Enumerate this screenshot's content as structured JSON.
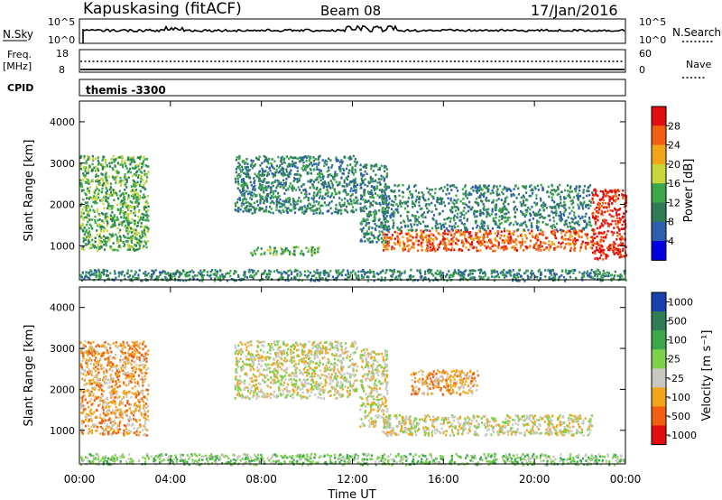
{
  "header": {
    "station": "Kapuskasing (fitACF)",
    "beam": "Beam 08",
    "date": "17/Jan/2016"
  },
  "top_panels": {
    "nsky_label": "N.Sky",
    "nsky_ticks": [
      "10^5",
      "10^0"
    ],
    "nsearch_label": "N.Search",
    "nsearch_ticks": [
      "10^5",
      "10^0"
    ],
    "freq_label": "Freq.",
    "freq_unit": "[MHz]",
    "freq_ticks": [
      "18",
      "8"
    ],
    "nave_label": "Nave",
    "nave_ticks": [
      "60",
      "0"
    ],
    "cpid_label": "CPID",
    "cpid_value": "themis -3300"
  },
  "chart_data": [
    {
      "type": "heatmap",
      "panel": "power",
      "ylabel": "Slant Range [km]",
      "xlabel": "",
      "x_ticks": [
        "00:00",
        "04:00",
        "08:00",
        "12:00",
        "16:00",
        "20:00",
        "00:00"
      ],
      "x_range_hours": [
        0,
        24
      ],
      "y_ticks": [
        1000,
        2000,
        3000,
        4000
      ],
      "ylim": [
        180,
        4500
      ],
      "colorbar": {
        "label": "Power [dB]",
        "ticks": [
          4,
          8,
          12,
          16,
          20,
          24,
          28
        ],
        "range": [
          0,
          32
        ],
        "colors": [
          "#0000e0",
          "#2d5fb0",
          "#2e7d57",
          "#3aa84a",
          "#c8d63c",
          "#f2a51a",
          "#f06010",
          "#e01010"
        ]
      },
      "features": [
        {
          "name": "early evening patches",
          "t_start": 0.0,
          "t_end": 3.0,
          "range_km": [
            900,
            3200
          ],
          "power_db": 14
        },
        {
          "name": "near-range ground scatter",
          "t_start": 0.0,
          "t_end": 24.0,
          "range_km": [
            180,
            450
          ],
          "power_db": 10
        },
        {
          "name": "daytime scatter band",
          "t_start": 6.8,
          "t_end": 12.2,
          "range_km": [
            1800,
            3200
          ],
          "power_db": 8
        },
        {
          "name": "midday small patches",
          "t_start": 7.5,
          "t_end": 10.5,
          "range_km": [
            800,
            1000
          ],
          "power_db": 12
        },
        {
          "name": "descending band",
          "t_start": 12.3,
          "t_end": 13.5,
          "range_km": [
            1100,
            3000
          ],
          "power_db": 10
        },
        {
          "name": "strong night-time band",
          "t_start": 13.3,
          "t_end": 22.5,
          "range_km": [
            900,
            1400
          ],
          "power_db": 26
        },
        {
          "name": "upper diffuse band",
          "t_start": 13.3,
          "t_end": 22.5,
          "range_km": [
            1400,
            2500
          ],
          "power_db": 10
        },
        {
          "name": "late strong scatter",
          "t_start": 22.5,
          "t_end": 24.0,
          "range_km": [
            700,
            2400
          ],
          "power_db": 28
        }
      ]
    },
    {
      "type": "heatmap",
      "panel": "velocity",
      "ylabel": "Slant Range [km]",
      "xlabel": "Time UT",
      "x_ticks": [
        "00:00",
        "04:00",
        "08:00",
        "12:00",
        "16:00",
        "20:00",
        "00:00"
      ],
      "x_range_hours": [
        0,
        24
      ],
      "y_ticks": [
        1000,
        2000,
        3000,
        4000
      ],
      "ylim": [
        180,
        4500
      ],
      "colorbar": {
        "label": "Velocity [m s⁻¹]",
        "ticks": [
          "1000",
          "500",
          "100",
          "25",
          "-25",
          "-100",
          "-500",
          "-1000"
        ],
        "colors": [
          "#1a3fb0",
          "#2e7d57",
          "#3aa84a",
          "#7cd24a",
          "#c8c8c0",
          "#f2a51a",
          "#f06010",
          "#e01010"
        ]
      },
      "features": [
        {
          "name": "early evening flow",
          "t_start": 0.0,
          "t_end": 3.0,
          "range_km": [
            900,
            3200
          ],
          "velocity": -200
        },
        {
          "name": "near-range ground scatter",
          "t_start": 0.0,
          "t_end": 24.0,
          "range_km": [
            180,
            450
          ],
          "velocity": 50
        },
        {
          "name": "daytime ground scatter",
          "t_start": 6.8,
          "t_end": 12.2,
          "range_km": [
            1800,
            3200
          ],
          "velocity": 0
        },
        {
          "name": "descending band",
          "t_start": 12.3,
          "t_end": 13.5,
          "range_km": [
            1100,
            3000
          ],
          "velocity": 0
        },
        {
          "name": "night-time ground scatter",
          "t_start": 13.3,
          "t_end": 22.5,
          "range_km": [
            900,
            1400
          ],
          "velocity": 0
        },
        {
          "name": "upper irregularities",
          "t_start": 14.5,
          "t_end": 17.5,
          "range_km": [
            1900,
            2500
          ],
          "velocity": -150
        }
      ]
    }
  ],
  "footer": {
    "xlabel": "Time UT"
  }
}
